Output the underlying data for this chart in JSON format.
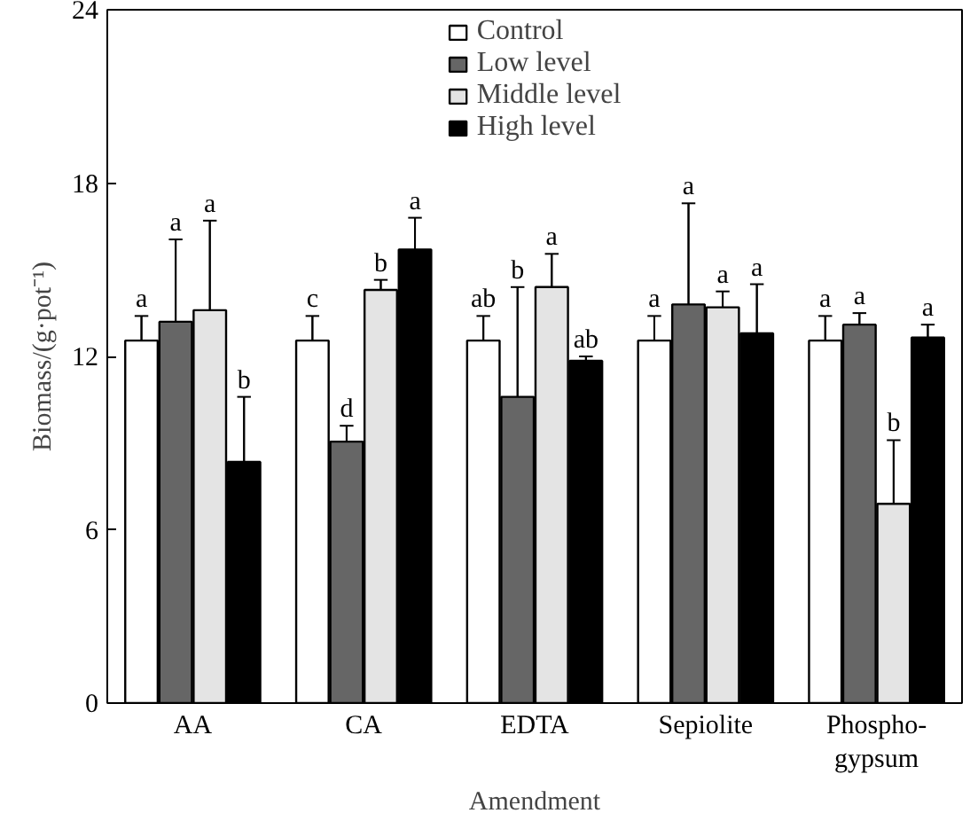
{
  "chart_data": {
    "type": "bar",
    "xlabel": "Amendment",
    "ylabel": "Biomass/(g·pot⁻¹)",
    "categories": [
      "AA",
      "CA",
      "EDTA",
      "Sepiolite",
      "Phospho-\ngypsum"
    ],
    "ylim": [
      0,
      24
    ],
    "yticks": [
      0,
      6,
      12,
      18,
      24
    ],
    "grid": false,
    "legend": "top",
    "series": [
      {
        "name": "Control",
        "color": "#ffffff",
        "values": [
          12.55,
          12.55,
          12.55,
          12.55,
          12.55
        ],
        "errors": [
          [
            12.55,
            13.4
          ],
          [
            12.55,
            13.4
          ],
          [
            12.55,
            13.4
          ],
          [
            12.55,
            13.4
          ],
          [
            12.55,
            13.4
          ]
        ],
        "value_labels": [
          "a",
          "c",
          "ab",
          "a",
          "a"
        ]
      },
      {
        "name": "Low level",
        "color": "#666666",
        "values": [
          13.2,
          9.05,
          10.6,
          13.8,
          13.1
        ],
        "errors": [
          [
            13.2,
            16.05
          ],
          [
            9.05,
            9.6
          ],
          [
            10.6,
            14.4
          ],
          [
            13.8,
            17.3
          ],
          [
            13.1,
            13.5
          ]
        ],
        "value_labels": [
          "a",
          "d",
          "b",
          "a",
          "a"
        ]
      },
      {
        "name": "Middle level",
        "color": "#e4e4e4",
        "values": [
          13.6,
          14.3,
          14.4,
          13.7,
          6.9
        ],
        "errors": [
          [
            13.6,
            16.7
          ],
          [
            14.3,
            14.65
          ],
          [
            14.4,
            15.55
          ],
          [
            13.7,
            14.25
          ],
          [
            6.9,
            9.1
          ]
        ],
        "value_labels": [
          "a",
          "b",
          "a",
          "a",
          "b"
        ]
      },
      {
        "name": "High level",
        "color": "#000000",
        "values": [
          8.35,
          15.7,
          11.85,
          12.8,
          12.65
        ],
        "errors": [
          [
            8.35,
            10.6
          ],
          [
            15.7,
            16.8
          ],
          [
            11.85,
            12.0
          ],
          [
            12.8,
            14.5
          ],
          [
            12.65,
            13.1
          ]
        ],
        "value_labels": [
          "b",
          "a",
          "ab",
          "a",
          "a"
        ]
      }
    ]
  }
}
